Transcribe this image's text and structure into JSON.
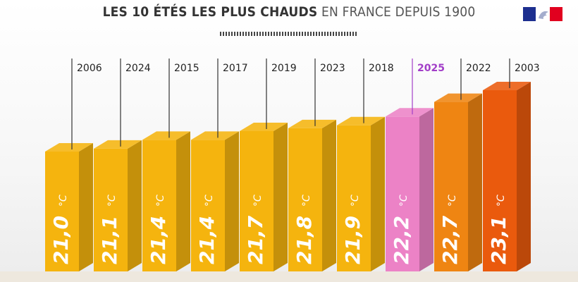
{
  "header": {
    "title_bold": "LES 10 ÉTÉS LES PLUS CHAUDS",
    "title_light": "EN FRANCE DEPUIS 1900"
  },
  "logo": {
    "icon": "marianne-flag-logo"
  },
  "colors": {
    "bar_main": "#f5b40e",
    "bar_highlight": "#ec82c6",
    "year_highlight": "#a23ec8",
    "year_default": "#222222"
  },
  "chart_data": {
    "type": "bar",
    "categories": [
      "2006",
      "2024",
      "2015",
      "2017",
      "2019",
      "2023",
      "2018",
      "2025",
      "2022",
      "2003"
    ],
    "values": [
      21.0,
      21.1,
      21.4,
      21.4,
      21.7,
      21.8,
      21.9,
      22.2,
      22.7,
      23.1
    ],
    "value_labels": [
      "21,0",
      "21,1",
      "21,4",
      "21,4",
      "21,7",
      "21,8",
      "21,9",
      "22,2",
      "22,7",
      "23,1"
    ],
    "unit": "°C",
    "highlight": "2025",
    "title": "LES 10 ÉTÉS LES PLUS CHAUDS EN FRANCE DEPUIS 1900",
    "xlabel": "",
    "ylabel": ""
  }
}
